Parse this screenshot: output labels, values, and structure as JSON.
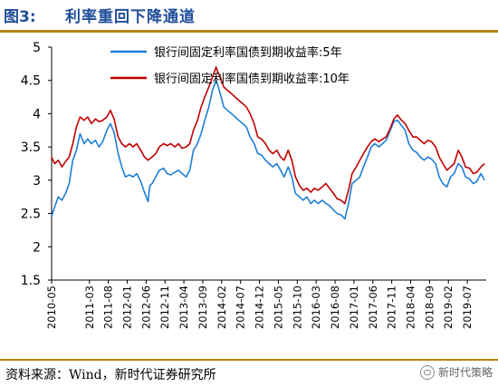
{
  "header": {
    "figure_label": "图3:",
    "figure_title": "利率重回下降通道"
  },
  "footer": {
    "source": "资料来源：Wind，新时代证券研究所",
    "watermark": "新时代策略"
  },
  "chart_data": {
    "type": "line",
    "ylim": [
      1.5,
      5
    ],
    "yticks": [
      "5",
      "4.5",
      "4",
      "3.5",
      "3",
      "2.5",
      "2",
      "1.5"
    ],
    "ytick_values": [
      5,
      4.5,
      4,
      3.5,
      3,
      2.5,
      2,
      1.5
    ],
    "xticks": [
      "2010-05",
      "2011-03",
      "2011-08",
      "2012-01",
      "2012-06",
      "2012-11",
      "2013-04",
      "2013-09",
      "2014-02",
      "2014-07",
      "2014-12",
      "2015-05",
      "2015-10",
      "2016-03",
      "2016-08",
      "2017-01",
      "2017-06",
      "2017-11",
      "2018-04",
      "2018-09",
      "2019-02",
      "2019-07"
    ],
    "xtick_positions": [
      2010.333,
      2011.167,
      2011.583,
      2012.0,
      2012.417,
      2012.833,
      2013.25,
      2013.667,
      2014.083,
      2014.5,
      2014.917,
      2015.333,
      2015.75,
      2016.167,
      2016.583,
      2017.0,
      2017.417,
      2017.833,
      2018.25,
      2018.667,
      2019.083,
      2019.5
    ],
    "xlim": [
      2010.333,
      2019.917
    ],
    "legend_position": "top",
    "series": [
      {
        "name": "银行间固定利率国债到期收益率:5年",
        "color": "#1f7ed8",
        "points": [
          [
            2010.33,
            2.45
          ],
          [
            2010.4,
            2.6
          ],
          [
            2010.48,
            2.75
          ],
          [
            2010.56,
            2.7
          ],
          [
            2010.64,
            2.8
          ],
          [
            2010.72,
            2.95
          ],
          [
            2010.8,
            3.3
          ],
          [
            2010.88,
            3.45
          ],
          [
            2010.96,
            3.7
          ],
          [
            2011.05,
            3.55
          ],
          [
            2011.13,
            3.62
          ],
          [
            2011.21,
            3.55
          ],
          [
            2011.3,
            3.6
          ],
          [
            2011.38,
            3.5
          ],
          [
            2011.46,
            3.58
          ],
          [
            2011.55,
            3.75
          ],
          [
            2011.63,
            3.85
          ],
          [
            2011.71,
            3.72
          ],
          [
            2011.8,
            3.4
          ],
          [
            2011.88,
            3.2
          ],
          [
            2011.96,
            3.05
          ],
          [
            2012.05,
            3.08
          ],
          [
            2012.13,
            3.05
          ],
          [
            2012.21,
            3.1
          ],
          [
            2012.3,
            2.98
          ],
          [
            2012.38,
            2.82
          ],
          [
            2012.46,
            2.68
          ],
          [
            2012.5,
            2.92
          ],
          [
            2012.55,
            2.95
          ],
          [
            2012.63,
            3.05
          ],
          [
            2012.71,
            3.15
          ],
          [
            2012.8,
            3.18
          ],
          [
            2012.88,
            3.1
          ],
          [
            2012.96,
            3.08
          ],
          [
            2013.05,
            3.12
          ],
          [
            2013.13,
            3.15
          ],
          [
            2013.21,
            3.1
          ],
          [
            2013.3,
            3.05
          ],
          [
            2013.38,
            3.15
          ],
          [
            2013.46,
            3.45
          ],
          [
            2013.55,
            3.55
          ],
          [
            2013.63,
            3.7
          ],
          [
            2013.71,
            3.9
          ],
          [
            2013.8,
            4.1
          ],
          [
            2013.88,
            4.35
          ],
          [
            2013.96,
            4.5
          ],
          [
            2014.0,
            4.42
          ],
          [
            2014.05,
            4.3
          ],
          [
            2014.13,
            4.1
          ],
          [
            2014.21,
            4.05
          ],
          [
            2014.3,
            4.0
          ],
          [
            2014.38,
            3.95
          ],
          [
            2014.46,
            3.9
          ],
          [
            2014.55,
            3.85
          ],
          [
            2014.63,
            3.8
          ],
          [
            2014.71,
            3.65
          ],
          [
            2014.8,
            3.55
          ],
          [
            2014.88,
            3.4
          ],
          [
            2014.96,
            3.38
          ],
          [
            2015.05,
            3.3
          ],
          [
            2015.13,
            3.25
          ],
          [
            2015.21,
            3.2
          ],
          [
            2015.3,
            3.25
          ],
          [
            2015.38,
            3.15
          ],
          [
            2015.46,
            3.05
          ],
          [
            2015.55,
            3.2
          ],
          [
            2015.63,
            3.05
          ],
          [
            2015.71,
            2.8
          ],
          [
            2015.8,
            2.75
          ],
          [
            2015.88,
            2.7
          ],
          [
            2015.96,
            2.75
          ],
          [
            2016.05,
            2.65
          ],
          [
            2016.13,
            2.7
          ],
          [
            2016.21,
            2.65
          ],
          [
            2016.3,
            2.7
          ],
          [
            2016.38,
            2.65
          ],
          [
            2016.46,
            2.62
          ],
          [
            2016.55,
            2.55
          ],
          [
            2016.63,
            2.5
          ],
          [
            2016.71,
            2.48
          ],
          [
            2016.8,
            2.42
          ],
          [
            2016.88,
            2.65
          ],
          [
            2016.96,
            2.95
          ],
          [
            2017.05,
            3.0
          ],
          [
            2017.13,
            3.05
          ],
          [
            2017.21,
            3.2
          ],
          [
            2017.3,
            3.35
          ],
          [
            2017.38,
            3.5
          ],
          [
            2017.46,
            3.55
          ],
          [
            2017.55,
            3.5
          ],
          [
            2017.63,
            3.55
          ],
          [
            2017.71,
            3.6
          ],
          [
            2017.8,
            3.75
          ],
          [
            2017.88,
            3.88
          ],
          [
            2017.96,
            3.9
          ],
          [
            2018.05,
            3.82
          ],
          [
            2018.13,
            3.75
          ],
          [
            2018.21,
            3.55
          ],
          [
            2018.3,
            3.45
          ],
          [
            2018.38,
            3.42
          ],
          [
            2018.46,
            3.35
          ],
          [
            2018.55,
            3.3
          ],
          [
            2018.63,
            3.35
          ],
          [
            2018.71,
            3.32
          ],
          [
            2018.8,
            3.25
          ],
          [
            2018.88,
            3.05
          ],
          [
            2018.96,
            2.95
          ],
          [
            2019.05,
            2.9
          ],
          [
            2019.13,
            3.05
          ],
          [
            2019.21,
            3.1
          ],
          [
            2019.3,
            3.25
          ],
          [
            2019.38,
            3.2
          ],
          [
            2019.46,
            3.05
          ],
          [
            2019.55,
            3.02
          ],
          [
            2019.63,
            2.95
          ],
          [
            2019.71,
            2.98
          ],
          [
            2019.8,
            3.1
          ],
          [
            2019.88,
            3.0
          ]
        ]
      },
      {
        "name": "银行间固定利率国债到期收益率:10年",
        "color": "#c00000",
        "points": [
          [
            2010.33,
            3.35
          ],
          [
            2010.4,
            3.25
          ],
          [
            2010.48,
            3.3
          ],
          [
            2010.56,
            3.2
          ],
          [
            2010.64,
            3.28
          ],
          [
            2010.72,
            3.35
          ],
          [
            2010.8,
            3.55
          ],
          [
            2010.88,
            3.8
          ],
          [
            2010.96,
            3.95
          ],
          [
            2011.05,
            3.9
          ],
          [
            2011.13,
            3.95
          ],
          [
            2011.21,
            3.85
          ],
          [
            2011.3,
            3.92
          ],
          [
            2011.38,
            3.88
          ],
          [
            2011.46,
            3.9
          ],
          [
            2011.55,
            3.95
          ],
          [
            2011.63,
            4.05
          ],
          [
            2011.71,
            3.92
          ],
          [
            2011.8,
            3.65
          ],
          [
            2011.88,
            3.55
          ],
          [
            2011.96,
            3.5
          ],
          [
            2012.05,
            3.55
          ],
          [
            2012.13,
            3.5
          ],
          [
            2012.21,
            3.55
          ],
          [
            2012.3,
            3.45
          ],
          [
            2012.38,
            3.35
          ],
          [
            2012.46,
            3.3
          ],
          [
            2012.55,
            3.35
          ],
          [
            2012.63,
            3.4
          ],
          [
            2012.71,
            3.5
          ],
          [
            2012.8,
            3.55
          ],
          [
            2012.88,
            3.52
          ],
          [
            2012.96,
            3.55
          ],
          [
            2013.05,
            3.5
          ],
          [
            2013.13,
            3.55
          ],
          [
            2013.21,
            3.48
          ],
          [
            2013.3,
            3.5
          ],
          [
            2013.38,
            3.55
          ],
          [
            2013.46,
            3.75
          ],
          [
            2013.55,
            3.9
          ],
          [
            2013.63,
            4.1
          ],
          [
            2013.71,
            4.25
          ],
          [
            2013.8,
            4.4
          ],
          [
            2013.88,
            4.55
          ],
          [
            2013.96,
            4.7
          ],
          [
            2014.0,
            4.62
          ],
          [
            2014.05,
            4.55
          ],
          [
            2014.13,
            4.4
          ],
          [
            2014.21,
            4.35
          ],
          [
            2014.3,
            4.3
          ],
          [
            2014.38,
            4.25
          ],
          [
            2014.46,
            4.2
          ],
          [
            2014.55,
            4.15
          ],
          [
            2014.63,
            4.1
          ],
          [
            2014.71,
            4.0
          ],
          [
            2014.8,
            3.85
          ],
          [
            2014.88,
            3.65
          ],
          [
            2014.96,
            3.62
          ],
          [
            2015.05,
            3.55
          ],
          [
            2015.13,
            3.45
          ],
          [
            2015.21,
            3.4
          ],
          [
            2015.3,
            3.45
          ],
          [
            2015.38,
            3.35
          ],
          [
            2015.46,
            3.3
          ],
          [
            2015.55,
            3.45
          ],
          [
            2015.63,
            3.3
          ],
          [
            2015.71,
            3.05
          ],
          [
            2015.8,
            2.92
          ],
          [
            2015.88,
            2.85
          ],
          [
            2015.96,
            2.88
          ],
          [
            2016.05,
            2.82
          ],
          [
            2016.13,
            2.88
          ],
          [
            2016.21,
            2.85
          ],
          [
            2016.3,
            2.9
          ],
          [
            2016.38,
            2.95
          ],
          [
            2016.46,
            2.88
          ],
          [
            2016.55,
            2.8
          ],
          [
            2016.63,
            2.72
          ],
          [
            2016.71,
            2.7
          ],
          [
            2016.8,
            2.65
          ],
          [
            2016.88,
            2.85
          ],
          [
            2016.96,
            3.1
          ],
          [
            2017.05,
            3.2
          ],
          [
            2017.13,
            3.3
          ],
          [
            2017.21,
            3.4
          ],
          [
            2017.3,
            3.5
          ],
          [
            2017.38,
            3.58
          ],
          [
            2017.46,
            3.62
          ],
          [
            2017.55,
            3.58
          ],
          [
            2017.63,
            3.62
          ],
          [
            2017.71,
            3.65
          ],
          [
            2017.8,
            3.78
          ],
          [
            2017.88,
            3.92
          ],
          [
            2017.96,
            3.98
          ],
          [
            2018.05,
            3.9
          ],
          [
            2018.13,
            3.85
          ],
          [
            2018.21,
            3.75
          ],
          [
            2018.3,
            3.65
          ],
          [
            2018.38,
            3.65
          ],
          [
            2018.46,
            3.6
          ],
          [
            2018.55,
            3.55
          ],
          [
            2018.63,
            3.6
          ],
          [
            2018.71,
            3.58
          ],
          [
            2018.8,
            3.5
          ],
          [
            2018.88,
            3.35
          ],
          [
            2018.96,
            3.25
          ],
          [
            2019.05,
            3.15
          ],
          [
            2019.13,
            3.2
          ],
          [
            2019.21,
            3.25
          ],
          [
            2019.3,
            3.45
          ],
          [
            2019.38,
            3.35
          ],
          [
            2019.46,
            3.2
          ],
          [
            2019.55,
            3.18
          ],
          [
            2019.63,
            3.1
          ],
          [
            2019.71,
            3.12
          ],
          [
            2019.8,
            3.2
          ],
          [
            2019.88,
            3.25
          ]
        ]
      }
    ]
  }
}
